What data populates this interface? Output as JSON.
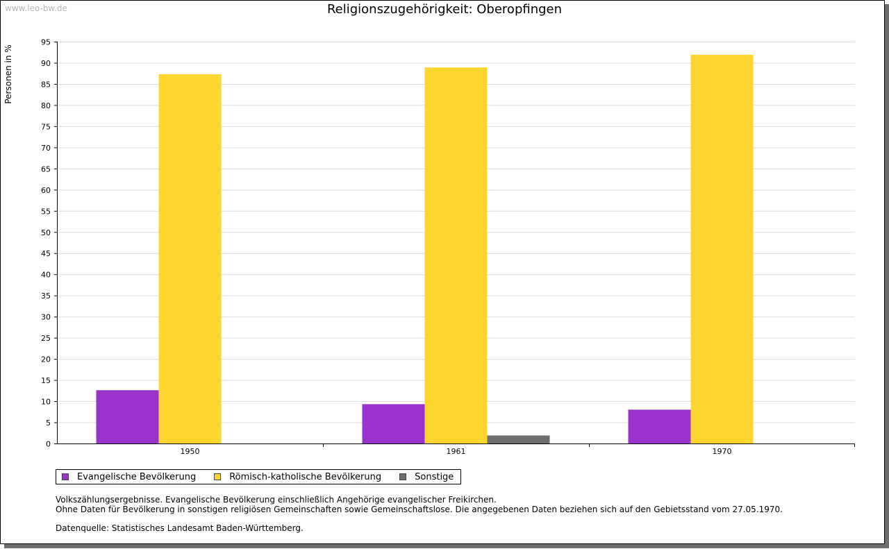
{
  "watermark": "www.leo-bw.de",
  "chart_data": {
    "type": "bar",
    "title": "Religionszugehörigkeit: Oberopfingen",
    "xlabel": "",
    "ylabel": "Personen in %",
    "ylim": [
      0,
      95
    ],
    "yticks": [
      0,
      5,
      10,
      15,
      20,
      25,
      30,
      35,
      40,
      45,
      50,
      55,
      60,
      65,
      70,
      75,
      80,
      85,
      90,
      95
    ],
    "grid": true,
    "legend_position": "bottom-left",
    "categories": [
      "1950",
      "1961",
      "1970"
    ],
    "series": [
      {
        "name": "Evangelische Bevölkerung",
        "color": "#9933cc",
        "values": [
          12.6,
          9.3,
          8.0
        ]
      },
      {
        "name": "Römisch-katholische Bevölkerung",
        "color": "#fcd62f",
        "values": [
          87.3,
          88.9,
          91.9
        ]
      },
      {
        "name": "Sonstige",
        "color": "#6e6e6e",
        "values": [
          null,
          1.9,
          null
        ]
      }
    ]
  },
  "notes": {
    "line1": "Volkszählungsergebnisse. Evangelische Bevölkerung einschließlich Angehörige evangelischer Freikirchen.",
    "line2": "Ohne Daten für Bevölkerung in sonstigen religiösen Gemeinschaften sowie Gemeinschaftslose. Die angegebenen Daten beziehen sich auf den Gebietsstand vom 27.05.1970.",
    "source": "Datenquelle: Statistisches Landesamt Baden-Württemberg."
  }
}
